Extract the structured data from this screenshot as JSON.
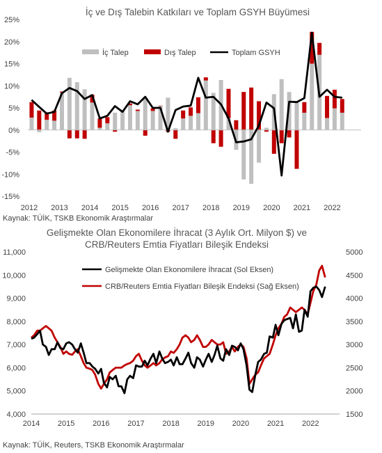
{
  "chart_data": [
    {
      "type": "bar",
      "title": "İç ve Dış Talebin Katkıları ve Toplam GSYH Büyümesi",
      "source": "Kaynak: TÜİK, TSKB Ekonomik Araştırmalar",
      "ylim": [
        -15,
        25
      ],
      "yticks": [
        "-15%",
        "-10%",
        "-5%",
        "0%",
        "5%",
        "10%",
        "15%",
        "20%",
        "25%"
      ],
      "xticks": [
        "2012",
        "2013",
        "2014",
        "2015",
        "2016",
        "2017",
        "2018",
        "2019",
        "2020",
        "2021",
        "2022"
      ],
      "quarters": [
        "2012Q1",
        "2012Q2",
        "2012Q3",
        "2012Q4",
        "2013Q1",
        "2013Q2",
        "2013Q3",
        "2013Q4",
        "2014Q1",
        "2014Q2",
        "2014Q3",
        "2014Q4",
        "2015Q1",
        "2015Q2",
        "2015Q3",
        "2015Q4",
        "2016Q1",
        "2016Q2",
        "2016Q3",
        "2016Q4",
        "2017Q1",
        "2017Q2",
        "2017Q3",
        "2017Q4",
        "2018Q1",
        "2018Q2",
        "2018Q3",
        "2018Q4",
        "2019Q1",
        "2019Q2",
        "2019Q3",
        "2019Q4",
        "2020Q1",
        "2020Q2",
        "2020Q3",
        "2020Q4",
        "2021Q1",
        "2021Q2",
        "2021Q3",
        "2021Q4",
        "2022Q1",
        "2022Q2"
      ],
      "stacked": true,
      "series": [
        {
          "name": "İç Talep",
          "kind": "bar",
          "color": "#bfbfbf",
          "values": [
            2.8,
            -0.5,
            2.3,
            2.1,
            8.5,
            11.8,
            10.8,
            9.2,
            6.2,
            0.5,
            1.5,
            3.9,
            4.4,
            5.6,
            4.3,
            7.2,
            4.3,
            5.5,
            7.3,
            0.4,
            2.6,
            3.2,
            3.8,
            11.2,
            8.4,
            11.3,
            2.7,
            -4.5,
            -11.2,
            -12.2,
            -7.4,
            0.5,
            8.1,
            11.5,
            8.6,
            6.5,
            3.9,
            15.0,
            17.0,
            2.7,
            4.9,
            3.9
          ]
        },
        {
          "name": "Dış Talep",
          "kind": "bar",
          "color": "#c00000",
          "values": [
            3.5,
            4.4,
            1.7,
            2.3,
            0.2,
            -1.9,
            -1.9,
            -2.0,
            1.8,
            2.1,
            1.4,
            -0.4,
            0.0,
            0.4,
            0.3,
            -1.3,
            0.6,
            0.0,
            -0.4,
            -2.0,
            1.8,
            1.9,
            3.6,
            0.7,
            -3.0,
            -3.8,
            6.6,
            2.2,
            8.6,
            9.6,
            6.5,
            -0.4,
            -5.4,
            -3.0,
            -1.7,
            -8.8,
            2.4,
            7.2,
            2.7,
            5.0,
            4.2,
            3.1
          ]
        },
        {
          "name": "Toplam GSYH",
          "kind": "line",
          "color": "#000000",
          "values": [
            6.8,
            5.2,
            3.7,
            4.1,
            8.3,
            9.5,
            8.8,
            7.0,
            7.9,
            2.6,
            3.2,
            5.4,
            4.1,
            6.5,
            5.8,
            7.5,
            5.0,
            5.0,
            -0.4,
            4.5,
            5.3,
            5.5,
            11.8,
            7.3,
            7.5,
            5.8,
            2.6,
            -2.8,
            -2.6,
            -2.1,
            1.0,
            6.2,
            4.9,
            -10.3,
            6.4,
            6.3,
            7.2,
            22.0,
            7.5,
            9.1,
            7.5,
            7.3
          ]
        }
      ],
      "legend_placement": "top"
    },
    {
      "type": "line",
      "title_lines": [
        "Gelişmekte Olan Ekonomilere İhracat (3 Aylık Ort. Milyon $) ve",
        "CRB/Reuters Emtia Fiyatları Bileşik Endeksi"
      ],
      "source": "Kaynak: TÜİK, Reuters, TSKB Ekonomik Araştırmalar",
      "xlim": [
        2014,
        2022.833
      ],
      "xticks": [
        "2014",
        "2015",
        "2016",
        "2017",
        "2018",
        "2019",
        "2020",
        "2021",
        "2022"
      ],
      "ylim_left": [
        4000,
        11000
      ],
      "ylim_right": [
        1500,
        5000
      ],
      "yticks_left": [
        "4,000",
        "5,000",
        "6,000",
        "7,000",
        "8,000",
        "9,000",
        "10,000",
        "11,000"
      ],
      "yticks_right": [
        "1500",
        "2000",
        "2500",
        "3000",
        "3500",
        "4000",
        "4500",
        "5000"
      ],
      "series": [
        {
          "name": "Gelişmekte Olan Ekonomilere İhracat (Sol Eksen)",
          "axis": "left",
          "color": "#000000",
          "points": [
            [
              2014.0,
              7250
            ],
            [
              2014.08,
              7300
            ],
            [
              2014.17,
              7450
            ],
            [
              2014.25,
              7600
            ],
            [
              2014.33,
              7000
            ],
            [
              2014.42,
              6900
            ],
            [
              2014.5,
              6550
            ],
            [
              2014.58,
              6800
            ],
            [
              2014.67,
              6800
            ],
            [
              2014.75,
              7100
            ],
            [
              2014.83,
              6850
            ],
            [
              2014.92,
              6800
            ],
            [
              2015.0,
              7050
            ],
            [
              2015.08,
              7100
            ],
            [
              2015.17,
              7000
            ],
            [
              2015.25,
              6800
            ],
            [
              2015.33,
              6650
            ],
            [
              2015.42,
              7050
            ],
            [
              2015.5,
              6650
            ],
            [
              2015.58,
              6200
            ],
            [
              2015.67,
              6200
            ],
            [
              2015.75,
              6050
            ],
            [
              2015.83,
              5950
            ],
            [
              2015.92,
              5750
            ],
            [
              2016.0,
              5950
            ],
            [
              2016.08,
              5350
            ],
            [
              2016.17,
              5150
            ],
            [
              2016.25,
              5600
            ],
            [
              2016.33,
              5500
            ],
            [
              2016.42,
              5650
            ],
            [
              2016.5,
              5200
            ],
            [
              2016.58,
              5200
            ],
            [
              2016.67,
              4900
            ],
            [
              2016.75,
              5500
            ],
            [
              2016.83,
              5650
            ],
            [
              2016.92,
              5550
            ],
            [
              2017.0,
              6100
            ],
            [
              2017.08,
              6050
            ],
            [
              2017.17,
              6050
            ],
            [
              2017.25,
              6300
            ],
            [
              2017.33,
              6100
            ],
            [
              2017.42,
              6400
            ],
            [
              2017.5,
              6600
            ],
            [
              2017.58,
              6200
            ],
            [
              2017.67,
              6700
            ],
            [
              2017.75,
              6400
            ],
            [
              2017.83,
              6200
            ],
            [
              2017.92,
              6250
            ],
            [
              2018.0,
              6350
            ],
            [
              2018.08,
              6100
            ],
            [
              2018.17,
              6450
            ],
            [
              2018.25,
              6150
            ],
            [
              2018.33,
              6150
            ],
            [
              2018.42,
              6400
            ],
            [
              2018.5,
              6650
            ],
            [
              2018.58,
              6200
            ],
            [
              2018.67,
              6000
            ],
            [
              2018.75,
              6450
            ],
            [
              2018.83,
              6350
            ],
            [
              2018.92,
              6050
            ],
            [
              2019.0,
              6350
            ],
            [
              2019.08,
              6600
            ],
            [
              2019.17,
              6250
            ],
            [
              2019.25,
              6550
            ],
            [
              2019.33,
              6950
            ],
            [
              2019.42,
              6400
            ],
            [
              2019.5,
              6300
            ],
            [
              2019.58,
              6800
            ],
            [
              2019.67,
              6550
            ],
            [
              2019.75,
              6950
            ],
            [
              2019.83,
              6900
            ],
            [
              2019.92,
              6750
            ],
            [
              2020.0,
              7050
            ],
            [
              2020.08,
              6800
            ],
            [
              2020.17,
              6100
            ],
            [
              2020.25,
              5050
            ],
            [
              2020.33,
              4950
            ],
            [
              2020.42,
              5700
            ],
            [
              2020.5,
              6250
            ],
            [
              2020.58,
              6350
            ],
            [
              2020.67,
              6600
            ],
            [
              2020.75,
              6650
            ],
            [
              2020.83,
              7350
            ],
            [
              2020.92,
              7300
            ],
            [
              2021.0,
              7850
            ],
            [
              2021.08,
              7400
            ],
            [
              2021.17,
              7900
            ],
            [
              2021.25,
              8050
            ],
            [
              2021.33,
              8100
            ],
            [
              2021.42,
              8150
            ],
            [
              2021.5,
              7700
            ],
            [
              2021.58,
              8300
            ],
            [
              2021.67,
              7550
            ],
            [
              2021.75,
              7600
            ],
            [
              2021.83,
              8500
            ],
            [
              2021.92,
              8200
            ],
            [
              2022.0,
              9300
            ],
            [
              2022.08,
              9450
            ],
            [
              2022.17,
              9500
            ],
            [
              2022.25,
              9350
            ],
            [
              2022.33,
              9050
            ],
            [
              2022.42,
              9500
            ]
          ]
        },
        {
          "name": "CRB/Reuters Emtia Fiyatları Bileşik Endeksi (Sağ Eksen)",
          "axis": "right",
          "color": "#c00000",
          "points": [
            [
              2014.0,
              3150
            ],
            [
              2014.08,
              3200
            ],
            [
              2014.17,
              3300
            ],
            [
              2014.25,
              3300
            ],
            [
              2014.33,
              3350
            ],
            [
              2014.42,
              3400
            ],
            [
              2014.5,
              3350
            ],
            [
              2014.58,
              3300
            ],
            [
              2014.67,
              3150
            ],
            [
              2014.75,
              3050
            ],
            [
              2014.83,
              2950
            ],
            [
              2014.92,
              2800
            ],
            [
              2015.0,
              2850
            ],
            [
              2015.08,
              2800
            ],
            [
              2015.17,
              2780
            ],
            [
              2015.25,
              2850
            ],
            [
              2015.33,
              2900
            ],
            [
              2015.42,
              2750
            ],
            [
              2015.5,
              2600
            ],
            [
              2015.58,
              2500
            ],
            [
              2015.67,
              2480
            ],
            [
              2015.75,
              2450
            ],
            [
              2015.83,
              2350
            ],
            [
              2015.92,
              2150
            ],
            [
              2016.0,
              2050
            ],
            [
              2016.08,
              2150
            ],
            [
              2016.17,
              2250
            ],
            [
              2016.25,
              2400
            ],
            [
              2016.33,
              2450
            ],
            [
              2016.42,
              2500
            ],
            [
              2016.5,
              2500
            ],
            [
              2016.58,
              2500
            ],
            [
              2016.67,
              2550
            ],
            [
              2016.75,
              2580
            ],
            [
              2016.83,
              2600
            ],
            [
              2016.92,
              2650
            ],
            [
              2017.0,
              2750
            ],
            [
              2017.08,
              2800
            ],
            [
              2017.17,
              2650
            ],
            [
              2017.25,
              2550
            ],
            [
              2017.33,
              2500
            ],
            [
              2017.42,
              2550
            ],
            [
              2017.5,
              2600
            ],
            [
              2017.58,
              2550
            ],
            [
              2017.67,
              2600
            ],
            [
              2017.75,
              2680
            ],
            [
              2017.83,
              2720
            ],
            [
              2017.92,
              2750
            ],
            [
              2018.0,
              2850
            ],
            [
              2018.08,
              2820
            ],
            [
              2018.17,
              2900
            ],
            [
              2018.25,
              3000
            ],
            [
              2018.33,
              3150
            ],
            [
              2018.42,
              3200
            ],
            [
              2018.5,
              3150
            ],
            [
              2018.58,
              3050
            ],
            [
              2018.67,
              3100
            ],
            [
              2018.75,
              3200
            ],
            [
              2018.83,
              3100
            ],
            [
              2018.92,
              2950
            ],
            [
              2019.0,
              2950
            ],
            [
              2019.08,
              3000
            ],
            [
              2019.17,
              3100
            ],
            [
              2019.25,
              3050
            ],
            [
              2019.33,
              3000
            ],
            [
              2019.42,
              3000
            ],
            [
              2019.5,
              3050
            ],
            [
              2019.58,
              2800
            ],
            [
              2019.67,
              2850
            ],
            [
              2019.75,
              2950
            ],
            [
              2019.83,
              2850
            ],
            [
              2019.92,
              2950
            ],
            [
              2020.0,
              3000
            ],
            [
              2020.08,
              2950
            ],
            [
              2020.17,
              2700
            ],
            [
              2020.25,
              2150
            ],
            [
              2020.33,
              2250
            ],
            [
              2020.42,
              2350
            ],
            [
              2020.5,
              2400
            ],
            [
              2020.58,
              2550
            ],
            [
              2020.67,
              2700
            ],
            [
              2020.75,
              2750
            ],
            [
              2020.83,
              2800
            ],
            [
              2020.92,
              3000
            ],
            [
              2021.0,
              3200
            ],
            [
              2021.08,
              3350
            ],
            [
              2021.17,
              3450
            ],
            [
              2021.25,
              3600
            ],
            [
              2021.33,
              3650
            ],
            [
              2021.42,
              3800
            ],
            [
              2021.5,
              3750
            ],
            [
              2021.58,
              3700
            ],
            [
              2021.67,
              3750
            ],
            [
              2021.75,
              3800
            ],
            [
              2021.83,
              3750
            ],
            [
              2021.92,
              3650
            ],
            [
              2022.0,
              3900
            ],
            [
              2022.08,
              4150
            ],
            [
              2022.17,
              4300
            ],
            [
              2022.25,
              4600
            ],
            [
              2022.33,
              4700
            ],
            [
              2022.42,
              4450
            ]
          ]
        }
      ],
      "legend_placement": "top-left"
    }
  ]
}
